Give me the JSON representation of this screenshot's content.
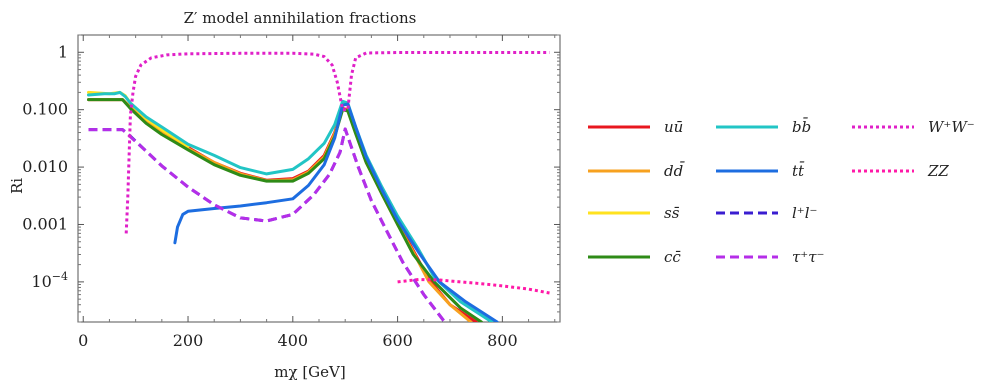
{
  "chart_data": {
    "type": "line",
    "title": "Z′ model annihilation fractions",
    "xlabel": "mχ [GeV]",
    "ylabel": "Ri",
    "x_ticks": [
      "0",
      "200",
      "400",
      "600",
      "800"
    ],
    "y_ticks": [
      "0.001",
      "0.010",
      "0.100",
      "1"
    ],
    "y_tick_extra": {
      "base": "10",
      "exp": "−4"
    },
    "xlim": [
      -10,
      910
    ],
    "ylim": [
      2e-05,
      2
    ],
    "y_scale": "log",
    "grid": false,
    "legend_position": "right, 3 columns",
    "series": [
      {
        "name": "uū",
        "color": "#e8171f",
        "dash": "solid",
        "points": [
          [
            10,
            0.15
          ],
          [
            75,
            0.15
          ],
          [
            90,
            0.11
          ],
          [
            120,
            0.06
          ],
          [
            150,
            0.04
          ],
          [
            200,
            0.022
          ],
          [
            250,
            0.012
          ],
          [
            300,
            0.0078
          ],
          [
            350,
            0.0059
          ],
          [
            400,
            0.0063
          ],
          [
            430,
            0.0085
          ],
          [
            460,
            0.016
          ],
          [
            480,
            0.04
          ],
          [
            495,
            0.105
          ],
          [
            505,
            0.1
          ],
          [
            520,
            0.04
          ],
          [
            540,
            0.012
          ],
          [
            570,
            0.0035
          ],
          [
            600,
            0.0011
          ],
          [
            630,
            0.00035
          ],
          [
            660,
            0.00011
          ],
          [
            700,
            4e-05
          ],
          [
            750,
            2e-05
          ]
        ]
      },
      {
        "name": "dd̄",
        "color": "#f7a11f",
        "dash": "solid",
        "points": [
          [
            10,
            0.15
          ],
          [
            75,
            0.15
          ],
          [
            90,
            0.11
          ],
          [
            120,
            0.06
          ],
          [
            150,
            0.04
          ],
          [
            200,
            0.021
          ],
          [
            250,
            0.012
          ],
          [
            300,
            0.0076
          ],
          [
            350,
            0.0058
          ],
          [
            400,
            0.006
          ],
          [
            430,
            0.0082
          ],
          [
            460,
            0.015
          ],
          [
            480,
            0.038
          ],
          [
            495,
            0.1
          ],
          [
            505,
            0.098
          ],
          [
            520,
            0.04
          ],
          [
            540,
            0.012
          ],
          [
            570,
            0.0034
          ],
          [
            600,
            0.001
          ],
          [
            630,
            0.00033
          ],
          [
            660,
            0.0001
          ],
          [
            700,
            4e-05
          ],
          [
            740,
            2e-05
          ]
        ]
      },
      {
        "name": "ss̄",
        "color": "#ffe21f",
        "dash": "solid",
        "points": [
          [
            10,
            0.2
          ],
          [
            50,
            0.19
          ],
          [
            70,
            0.2
          ],
          [
            80,
            0.175
          ],
          [
            90,
            0.13
          ],
          [
            120,
            0.07
          ],
          [
            150,
            0.045
          ],
          [
            200,
            0.023
          ]
        ]
      },
      {
        "name": "cc̄",
        "color": "#2e8b17",
        "dash": "solid",
        "points": [
          [
            10,
            0.15
          ],
          [
            75,
            0.15
          ],
          [
            90,
            0.105
          ],
          [
            120,
            0.058
          ],
          [
            150,
            0.037
          ],
          [
            200,
            0.02
          ],
          [
            250,
            0.011
          ],
          [
            300,
            0.0072
          ],
          [
            350,
            0.0057
          ],
          [
            400,
            0.0057
          ],
          [
            430,
            0.0078
          ],
          [
            460,
            0.014
          ],
          [
            480,
            0.034
          ],
          [
            495,
            0.1
          ],
          [
            505,
            0.095
          ],
          [
            520,
            0.038
          ],
          [
            540,
            0.012
          ],
          [
            570,
            0.0034
          ],
          [
            600,
            0.001
          ],
          [
            630,
            0.0003
          ],
          [
            670,
            0.0001
          ],
          [
            720,
            3.5e-05
          ],
          [
            760,
            2e-05
          ]
        ]
      },
      {
        "name": "bb̄",
        "color": "#22c5c5",
        "dash": "solid",
        "points": [
          [
            10,
            0.18
          ],
          [
            40,
            0.19
          ],
          [
            60,
            0.19
          ],
          [
            70,
            0.2
          ],
          [
            80,
            0.17
          ],
          [
            90,
            0.13
          ],
          [
            120,
            0.075
          ],
          [
            150,
            0.05
          ],
          [
            200,
            0.025
          ],
          [
            250,
            0.016
          ],
          [
            300,
            0.0098
          ],
          [
            350,
            0.0076
          ],
          [
            400,
            0.0091
          ],
          [
            430,
            0.014
          ],
          [
            460,
            0.026
          ],
          [
            480,
            0.055
          ],
          [
            495,
            0.14
          ],
          [
            505,
            0.13
          ],
          [
            520,
            0.05
          ],
          [
            540,
            0.016
          ],
          [
            570,
            0.0045
          ],
          [
            600,
            0.0014
          ],
          [
            640,
            0.00037
          ],
          [
            670,
            0.00012
          ],
          [
            720,
            4.5e-05
          ],
          [
            780,
            2e-05
          ]
        ]
      },
      {
        "name": "tt̄",
        "color": "#1d6de0",
        "dash": "solid",
        "points": [
          [
            175,
            0.00048
          ],
          [
            180,
            0.0009
          ],
          [
            190,
            0.0015
          ],
          [
            200,
            0.0017
          ],
          [
            250,
            0.0019
          ],
          [
            300,
            0.0021
          ],
          [
            350,
            0.0024
          ],
          [
            400,
            0.0028
          ],
          [
            430,
            0.0048
          ],
          [
            460,
            0.011
          ],
          [
            480,
            0.032
          ],
          [
            495,
            0.12
          ],
          [
            505,
            0.125
          ],
          [
            520,
            0.05
          ],
          [
            540,
            0.015
          ],
          [
            570,
            0.004
          ],
          [
            600,
            0.0012
          ],
          [
            640,
            0.00033
          ],
          [
            680,
            0.0001
          ],
          [
            730,
            4.5e-05
          ],
          [
            790,
            2e-05
          ]
        ]
      },
      {
        "name": "l⁺l⁻",
        "color": "#3a1dd0",
        "dash": "dashed",
        "points": [
          [
            10,
            0.045
          ],
          [
            75,
            0.045
          ],
          [
            85,
            0.038
          ],
          [
            120,
            0.019
          ],
          [
            150,
            0.0105
          ],
          [
            200,
            0.0045
          ],
          [
            250,
            0.0022
          ],
          [
            300,
            0.0013
          ],
          [
            350,
            0.00115
          ],
          [
            400,
            0.0015
          ],
          [
            440,
            0.0033
          ],
          [
            470,
            0.0075
          ],
          [
            490,
            0.018
          ],
          [
            500,
            0.046
          ],
          [
            510,
            0.025
          ],
          [
            525,
            0.01
          ],
          [
            550,
            0.0026
          ],
          [
            580,
            0.00075
          ],
          [
            610,
            0.00022
          ],
          [
            650,
            6e-05
          ],
          [
            690,
            2e-05
          ]
        ]
      },
      {
        "name": "τ⁺τ⁻",
        "color": "#b52ee8",
        "dash": "dashed",
        "points": [
          [
            10,
            0.045
          ],
          [
            75,
            0.045
          ],
          [
            85,
            0.037
          ],
          [
            120,
            0.019
          ],
          [
            150,
            0.0105
          ],
          [
            200,
            0.0045
          ],
          [
            250,
            0.0022
          ],
          [
            300,
            0.0013
          ],
          [
            350,
            0.00115
          ],
          [
            400,
            0.0015
          ],
          [
            440,
            0.0033
          ],
          [
            470,
            0.0075
          ],
          [
            490,
            0.018
          ],
          [
            500,
            0.046
          ],
          [
            510,
            0.025
          ],
          [
            525,
            0.01
          ],
          [
            550,
            0.0026
          ],
          [
            580,
            0.00075
          ],
          [
            610,
            0.00022
          ],
          [
            650,
            6e-05
          ],
          [
            690,
            2e-05
          ]
        ]
      },
      {
        "name": "W⁺W⁻",
        "color": "#e020c8",
        "dash": "dotted",
        "points": [
          [
            82,
            0.0007
          ],
          [
            85,
            0.003
          ],
          [
            88,
            0.02
          ],
          [
            90,
            0.08
          ],
          [
            95,
            0.2
          ],
          [
            100,
            0.38
          ],
          [
            110,
            0.6
          ],
          [
            130,
            0.8
          ],
          [
            160,
            0.9
          ],
          [
            200,
            0.94
          ],
          [
            300,
            0.96
          ],
          [
            400,
            0.96
          ],
          [
            440,
            0.93
          ],
          [
            460,
            0.84
          ],
          [
            475,
            0.6
          ],
          [
            485,
            0.3
          ],
          [
            495,
            0.1
          ],
          [
            505,
            0.1
          ],
          [
            512,
            0.4
          ],
          [
            520,
            0.8
          ],
          [
            540,
            0.97
          ],
          [
            600,
            0.99
          ],
          [
            700,
            0.99
          ],
          [
            800,
            0.99
          ],
          [
            890,
            0.99
          ]
        ]
      },
      {
        "name": "ZZ",
        "color": "#ff1aa8",
        "dash": "dotted",
        "points": [
          [
            600,
            0.0001
          ],
          [
            640,
            0.00011
          ],
          [
            680,
            0.000108
          ],
          [
            720,
            0.0001
          ],
          [
            760,
            9.3e-05
          ],
          [
            800,
            8.5e-05
          ],
          [
            850,
            7.5e-05
          ],
          [
            890,
            6.4e-05
          ]
        ]
      }
    ]
  }
}
